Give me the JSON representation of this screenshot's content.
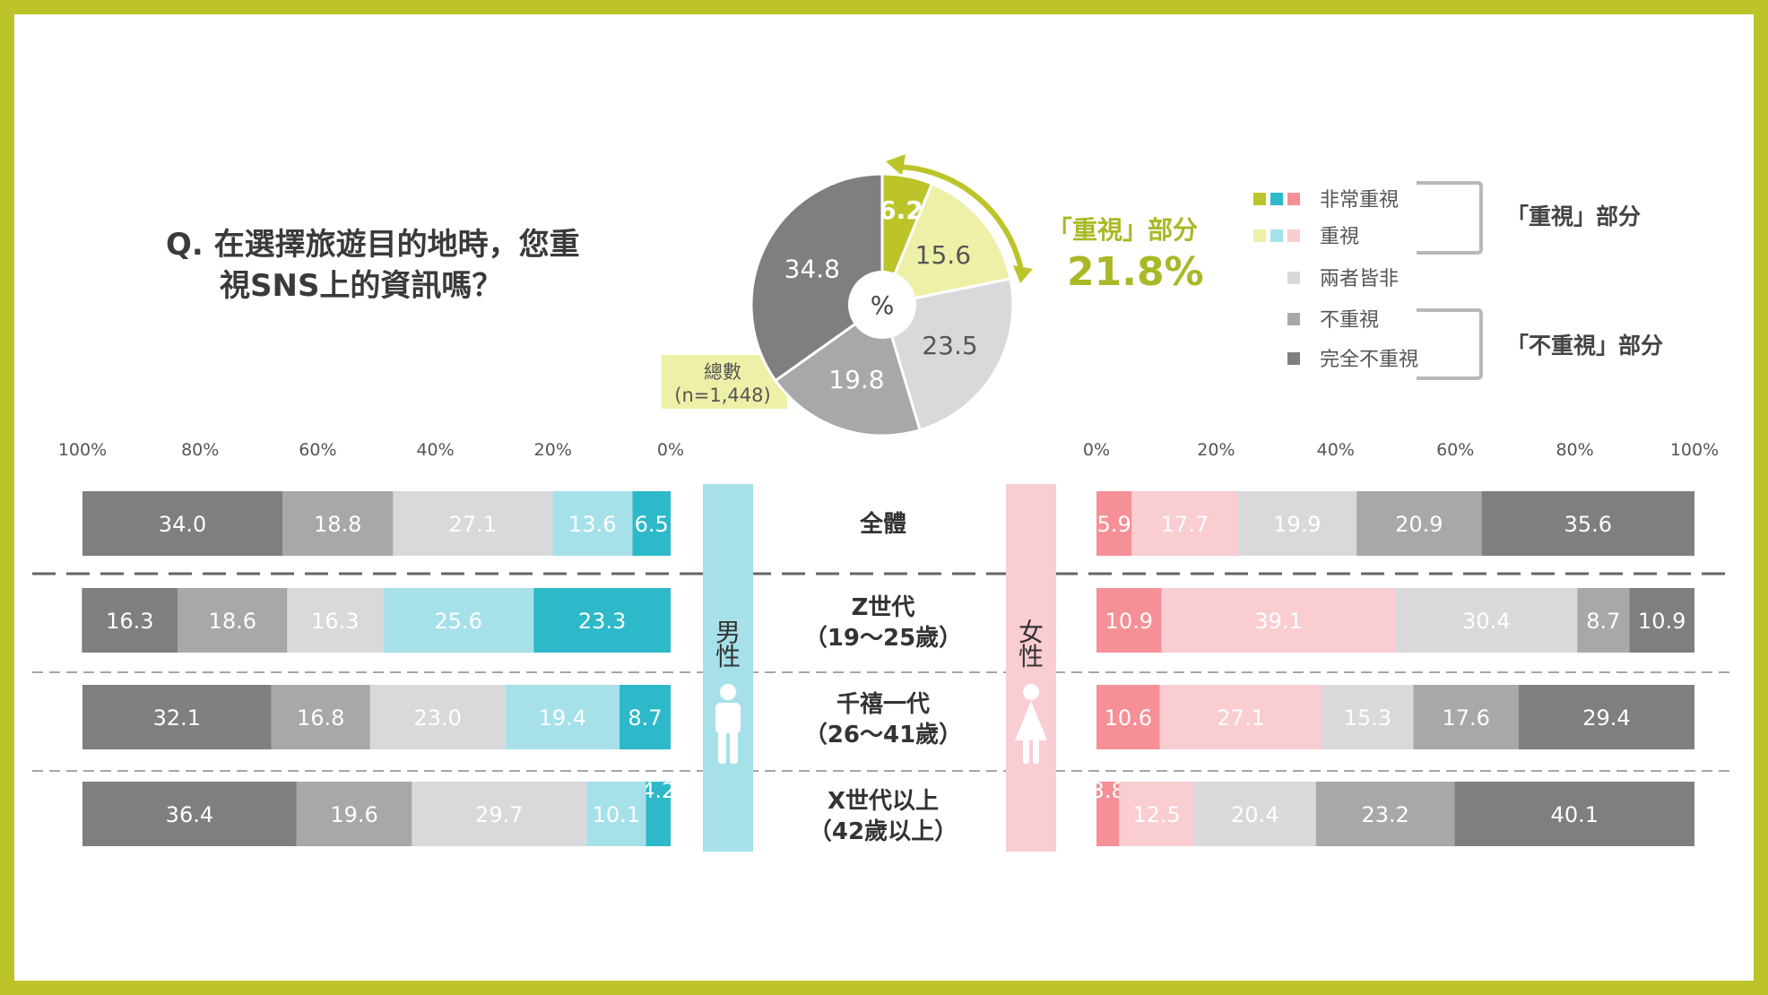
{
  "question": {
    "line1": "Q.  在選擇旅遊目的地時，您重",
    "line2": "視SNS上的資訊嗎？"
  },
  "colors": {
    "frame": "#bcc42a",
    "very_important_male": "#2db9c9",
    "important_male": "#a6e1ea",
    "very_important_female": "#f59096",
    "important_female": "#f9cdd1",
    "neither": "#d9d9db",
    "not_important": "#a8a8aa",
    "not_important_at_all": "#7f7f81",
    "pie_very_important": "#bcc42a",
    "pie_important": "#eef0a8",
    "callout": "#aab825",
    "male_band": "#a6e1ea",
    "female_band": "#f9cdd1",
    "total_box": "#eef0a8"
  },
  "legend": {
    "items": [
      {
        "label": "非常重視",
        "swatches": [
          "#bcc42a",
          "#2db9c9",
          "#f59096"
        ]
      },
      {
        "label": "重視",
        "swatches": [
          "#eef0a8",
          "#a6e1ea",
          "#f9cdd1"
        ]
      },
      {
        "label": "兩者皆非",
        "swatches": [
          "#d9d9db"
        ]
      },
      {
        "label": "不重視",
        "swatches": [
          "#a8a8aa"
        ]
      },
      {
        "label": "完全不重視",
        "swatches": [
          "#7f7f81"
        ]
      }
    ],
    "group_important": "「重視」部分",
    "group_not_important": "「不重視」部分"
  },
  "callout": {
    "label": "「重視」部分",
    "value": "21.8%"
  },
  "total": {
    "label": "總數",
    "n": "(n=1,448)"
  },
  "gender": {
    "male": [
      "男",
      "性"
    ],
    "female": [
      "女",
      "性"
    ]
  },
  "chart_data": [
    {
      "type": "pie",
      "center_label": "%",
      "slices": [
        {
          "label": "非常重視",
          "value": 6.2,
          "display": "6.2"
        },
        {
          "label": "重視",
          "value": 15.6,
          "display": "15.6"
        },
        {
          "label": "兩者皆非",
          "value": 23.5,
          "display": "23.5"
        },
        {
          "label": "不重視",
          "value": 19.8,
          "display": "19.8"
        },
        {
          "label": "完全不重視",
          "value": 34.8,
          "display": "34.8"
        }
      ]
    },
    {
      "type": "bar",
      "orientation": "horizontal-stacked",
      "panel": "男性",
      "direction": "right-to-left",
      "xlim": [
        0,
        100
      ],
      "ticks": [
        "0%",
        "20%",
        "40%",
        "60%",
        "80%",
        "100%"
      ],
      "categories": [
        "全體",
        "Z世代（19～25歲）",
        "千禧一代（26～41歲）",
        "X世代以上（42歲以上）"
      ],
      "series": [
        {
          "name": "非常重視",
          "values": [
            6.5,
            23.3,
            8.7,
            4.2
          ]
        },
        {
          "name": "重視",
          "values": [
            13.6,
            25.6,
            19.4,
            10.1
          ]
        },
        {
          "name": "兩者皆非",
          "values": [
            27.1,
            16.3,
            23.0,
            29.7
          ]
        },
        {
          "name": "不重視",
          "values": [
            18.8,
            18.6,
            16.8,
            19.6
          ]
        },
        {
          "name": "完全不重視",
          "values": [
            34.0,
            16.3,
            32.1,
            36.4
          ]
        }
      ],
      "labels": [
        [
          "6.5",
          "13.6",
          "27.1",
          "18.8",
          "34.0"
        ],
        [
          "23.3",
          "25.6",
          "16.3",
          "18.6",
          "16.3"
        ],
        [
          "8.7",
          "19.4",
          "23.0",
          "16.8",
          "32.1"
        ],
        [
          "4.2",
          "10.1",
          "29.7",
          "19.6",
          "36.4"
        ]
      ]
    },
    {
      "type": "bar",
      "orientation": "horizontal-stacked",
      "panel": "女性",
      "direction": "left-to-right",
      "xlim": [
        0,
        100
      ],
      "ticks": [
        "0%",
        "20%",
        "40%",
        "60%",
        "80%",
        "100%"
      ],
      "categories": [
        "全體",
        "Z世代（19～25歲）",
        "千禧一代（26～41歲）",
        "X世代以上（42歲以上）"
      ],
      "series": [
        {
          "name": "非常重視",
          "values": [
            5.9,
            10.9,
            10.6,
            3.8
          ]
        },
        {
          "name": "重視",
          "values": [
            17.7,
            39.1,
            27.1,
            12.5
          ]
        },
        {
          "name": "兩者皆非",
          "values": [
            19.9,
            30.4,
            15.3,
            20.4
          ]
        },
        {
          "name": "不重視",
          "values": [
            20.9,
            8.7,
            17.6,
            23.2
          ]
        },
        {
          "name": "完全不重視",
          "values": [
            35.6,
            10.9,
            29.4,
            40.1
          ]
        }
      ],
      "labels": [
        [
          "5.9",
          "17.7",
          "19.9",
          "20.9",
          "35.6"
        ],
        [
          "10.9",
          "39.1",
          "30.4",
          "8.7",
          "10.9"
        ],
        [
          "10.6",
          "27.1",
          "15.3",
          "17.6",
          "29.4"
        ],
        [
          "3.8",
          "12.5",
          "20.4",
          "23.2",
          "40.1"
        ]
      ]
    }
  ],
  "categories_display": [
    [
      "全體"
    ],
    [
      "Z世代",
      "（19～25歲）"
    ],
    [
      "千禧一代",
      "（26～41歲）"
    ],
    [
      "X世代以上",
      "（42歲以上）"
    ]
  ]
}
